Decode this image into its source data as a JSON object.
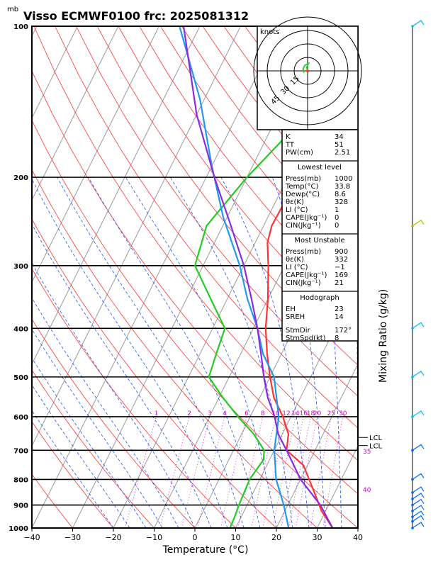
{
  "chart_data": {
    "type": "line",
    "title": "Visso ECMWF0100  frc: 2025081312",
    "pressure_unit": "mb",
    "xlabel": "Temperature (°C)",
    "right_label": "Mixing Ratio (g/kg)",
    "xlim": [
      -40,
      40
    ],
    "ylim": [
      1000,
      100
    ],
    "yscale": "log",
    "x_ticks": [
      -40,
      -30,
      -20,
      -10,
      0,
      10,
      20,
      30,
      40
    ],
    "p_levels": [
      100,
      200,
      300,
      400,
      500,
      600,
      700,
      800,
      900,
      1000
    ],
    "mixing_ratio_labels": [
      "1",
      "2",
      "3",
      "4",
      "6",
      "8",
      "10",
      "12",
      "14",
      "16",
      "18",
      "20",
      "25",
      "30"
    ],
    "theta_e_labels": [
      "35",
      "40"
    ],
    "lcl_label": "LCL",
    "colors": {
      "temperature": "#ff3333",
      "dewpoint": "#22cc22",
      "wetbulb": "#1e9bf0",
      "parcel": "#8a2be2",
      "isotherm": "#9a9a9a",
      "dry_adiabat": "#ff3333",
      "moist_adiabat": "#1e50ff",
      "mixing_ratio": "#cc00cc"
    },
    "series": [
      {
        "key": "temperature",
        "points": [
          [
            33.8,
            1000
          ],
          [
            29,
            925
          ],
          [
            25,
            850
          ],
          [
            19,
            750
          ],
          [
            13,
            700
          ],
          [
            11.5,
            650
          ],
          [
            8,
            600
          ],
          [
            3.5,
            550
          ],
          [
            0,
            500
          ],
          [
            -3.5,
            450
          ],
          [
            -7,
            400
          ],
          [
            -10,
            350
          ],
          [
            -14,
            300
          ],
          [
            -17,
            270
          ],
          [
            -18,
            250
          ],
          [
            -17.5,
            200
          ],
          [
            -16,
            150
          ],
          [
            -13,
            100
          ]
        ]
      },
      {
        "key": "dewpoint",
        "points": [
          [
            8.6,
            1000
          ],
          [
            8.4,
            950
          ],
          [
            8,
            900
          ],
          [
            7.5,
            800
          ],
          [
            8.5,
            730
          ],
          [
            7.5,
            700
          ],
          [
            3,
            650
          ],
          [
            -3,
            600
          ],
          [
            -9,
            550
          ],
          [
            -15,
            500
          ],
          [
            -16,
            450
          ],
          [
            -17,
            400
          ],
          [
            -24,
            350
          ],
          [
            -32,
            300
          ],
          [
            -34,
            250
          ],
          [
            -30,
            200
          ],
          [
            -23,
            150
          ],
          [
            -13,
            100
          ]
        ]
      },
      {
        "key": "wetbulb",
        "points": [
          [
            23,
            1000
          ],
          [
            19,
            900
          ],
          [
            14,
            800
          ],
          [
            10,
            700
          ],
          [
            7,
            600
          ],
          [
            1,
            500
          ],
          [
            -4.5,
            450
          ],
          [
            -9,
            400
          ],
          [
            -15,
            350
          ],
          [
            -21,
            300
          ],
          [
            -31,
            240
          ],
          [
            -40,
            190
          ],
          [
            -51,
            140
          ],
          [
            -65,
            100
          ]
        ]
      },
      {
        "key": "parcel",
        "points": [
          [
            33.8,
            1000
          ],
          [
            28,
            900
          ],
          [
            20,
            800
          ],
          [
            13,
            700
          ],
          [
            9,
            650
          ],
          [
            6,
            600
          ],
          [
            2,
            550
          ],
          [
            -1.5,
            500
          ],
          [
            -5,
            450
          ],
          [
            -9,
            400
          ],
          [
            -14,
            350
          ],
          [
            -20,
            300
          ],
          [
            -28,
            250
          ],
          [
            -38,
            200
          ],
          [
            -50,
            150
          ],
          [
            -64,
            100
          ]
        ]
      }
    ],
    "lcl_lines": [
      {
        "p": 660
      },
      {
        "p": 685
      }
    ],
    "hodograph": {
      "unit": "knots",
      "rings": [
        "15",
        "30",
        "45"
      ],
      "line": [
        [
          0,
          0
        ],
        [
          -1,
          4
        ],
        [
          1,
          8
        ],
        [
          -3,
          6
        ],
        [
          -5,
          2
        ],
        [
          -4,
          -2
        ]
      ]
    },
    "indices": {
      "rows": [
        [
          "K",
          "34"
        ],
        [
          "TT",
          "51"
        ],
        [
          "PW(cm)",
          "2.51"
        ]
      ]
    },
    "lowest_level": {
      "header": "Lowest level",
      "rows": [
        [
          "Press(mb)",
          "1000"
        ],
        [
          "Temp(°C)",
          "33.8"
        ],
        [
          "Dewp(°C)",
          "8.6"
        ],
        [
          "θε(K)",
          "328"
        ],
        [
          "LI (°C)",
          "1"
        ],
        [
          "CAPE(Jkg⁻¹)",
          "0"
        ],
        [
          "CIN(Jkg⁻¹)",
          "0"
        ]
      ]
    },
    "most_unstable": {
      "header": "Most Unstable",
      "rows": [
        [
          "Press(mb)",
          "900"
        ],
        [
          "θε(K)",
          "332"
        ],
        [
          "LI (°C)",
          "−1"
        ],
        [
          "CAPE(Jkg⁻¹)",
          "169"
        ],
        [
          "CIN(Jkg⁻¹)",
          "21"
        ]
      ]
    },
    "hodograph_params": {
      "header": "Hodograph",
      "rows": [
        [
          "EH",
          "23"
        ],
        [
          "SREH",
          "14"
        ],
        [
          "StmDir",
          "172°"
        ],
        [
          "StmSpd(kt)",
          "8"
        ]
      ]
    }
  }
}
